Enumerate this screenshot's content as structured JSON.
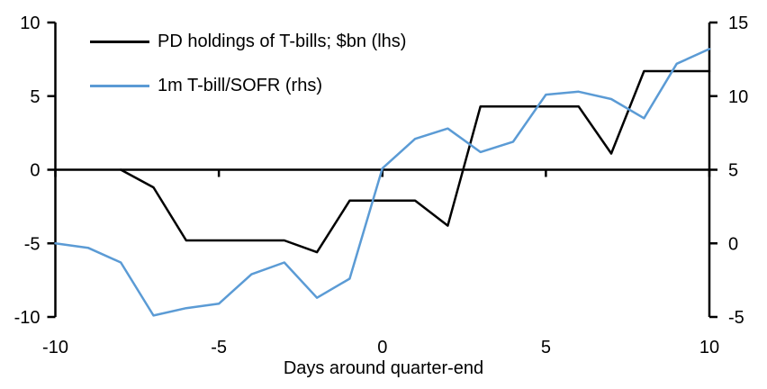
{
  "chart_data": {
    "type": "line",
    "xlabel": "Days around quarter-end",
    "grid": false,
    "legend_position": "top-left",
    "background_color": "#ffffff",
    "axis_color": "#000000",
    "x": [
      -10,
      -9,
      -8,
      -7,
      -6,
      -5,
      -4,
      -3,
      -2,
      -1,
      0,
      1,
      2,
      3,
      4,
      5,
      6,
      7,
      8,
      9,
      10
    ],
    "series": [
      {
        "name": "PD holdings of T-bills; $bn (lhs)",
        "axis": "left",
        "color": "#000000",
        "values": [
          null,
          null,
          0,
          -1.2,
          -4.8,
          -4.8,
          -4.8,
          -4.8,
          -5.6,
          -2.1,
          -2.1,
          -2.1,
          -3.8,
          4.3,
          4.3,
          4.3,
          4.3,
          1.1,
          6.7,
          6.7,
          6.7
        ]
      },
      {
        "name": "1m T-bill/SOFR (rhs)",
        "axis": "right",
        "color": "#5B9BD5",
        "values": [
          0.0,
          -0.3,
          -1.3,
          -4.9,
          -4.4,
          -4.1,
          -2.1,
          -1.3,
          -3.7,
          -2.4,
          5.1,
          7.1,
          7.8,
          6.2,
          6.9,
          10.1,
          10.3,
          9.8,
          8.5,
          12.2,
          13.2
        ]
      }
    ],
    "left_axis": {
      "range": [
        -10,
        10
      ],
      "ticks": [
        10,
        5,
        0,
        -5,
        -10
      ]
    },
    "right_axis": {
      "range": [
        -5,
        15
      ],
      "ticks": [
        15,
        10,
        5,
        0,
        -5
      ]
    },
    "x_axis": {
      "range": [
        -10,
        10
      ],
      "ticks": [
        -10,
        -5,
        0,
        5,
        10
      ]
    }
  }
}
